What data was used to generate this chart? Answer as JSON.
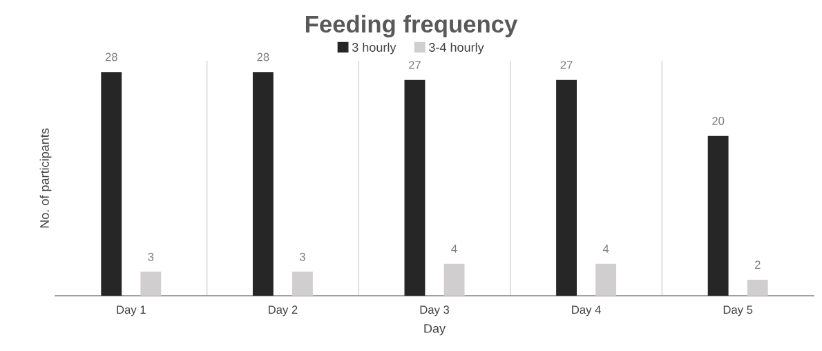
{
  "chart_data": {
    "type": "bar",
    "title": "Feeding frequency",
    "xlabel": "Day",
    "ylabel": "No. of participants",
    "categories": [
      "Day 1",
      "Day 2",
      "Day 3",
      "Day 4",
      "Day 5"
    ],
    "series": [
      {
        "name": "3 hourly",
        "color": "#262626",
        "values": [
          28,
          28,
          27,
          27,
          20
        ]
      },
      {
        "name": "3-4 hourly",
        "color": "#d0cece",
        "values": [
          3,
          3,
          4,
          4,
          2
        ]
      }
    ],
    "data_labels": true,
    "grid": "x",
    "legend": "top",
    "tick_labels": "x"
  }
}
